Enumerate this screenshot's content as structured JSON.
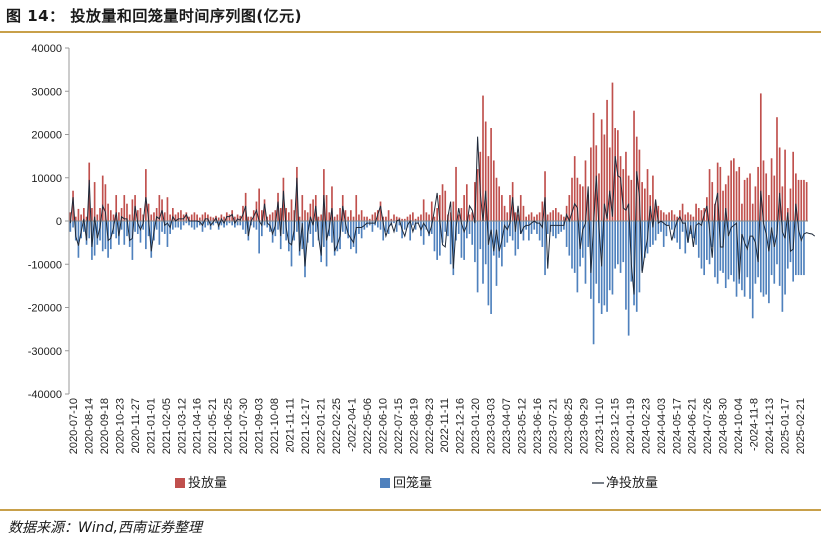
{
  "figure": {
    "title": "图 14：  投放量和回笼量时间序列图(亿元)",
    "source": "数据来源：Wind,西南证券整理"
  },
  "colors": {
    "inject": "#c0504d",
    "withdraw": "#4f81bd",
    "net": "#1f2a3a",
    "rule": "#c8a04a"
  },
  "chart_data": {
    "type": "bar",
    "title": "",
    "xlabel": "",
    "ylabel": "",
    "ylim": [
      -40000,
      40000
    ],
    "yticks": [
      40000,
      30000,
      20000,
      10000,
      0,
      -10000,
      -20000,
      -30000,
      -40000
    ],
    "x_tick_labels": [
      "2020-07-10",
      "2020-08-14",
      "2020-09-18",
      "2020-10-23",
      "2020-11-27",
      "2021-01-01",
      "2021-02-05",
      "2021-03-12",
      "2021-04-16",
      "2021-05-21",
      "2021-06-25",
      "2021-07-30",
      "2021-09-03",
      "2021-10-08",
      "2021-11-11",
      "2021-12-17",
      "2022-01-21",
      "2022-02-25",
      "-2022-04-1",
      "2022-05-06",
      "2022-06-10",
      "2022-07-15",
      "2022-08-19",
      "2022-09-23",
      "2022-11-11",
      "2022-12-16",
      "2023-01-20",
      "2023-03-03",
      "2023-04-07",
      "2023-05-12",
      "2023-06-16",
      "2023-07-21",
      "2023-08-25",
      "2023-09-29",
      "2023-11-10",
      "2023-12-15",
      "2024-01-19",
      "2024-02-23",
      "2024-04-03",
      "2024-05-17",
      "2024-06-21",
      "2024-07-26",
      "2024-08-30",
      "2024-10-04",
      "-2024-11-8",
      "2024-12-13",
      "2025-01-17",
      "2025-02-21"
    ],
    "legend_position": "bottom",
    "series": [
      {
        "name": "投放量",
        "type": "bar",
        "color": "#c0504d",
        "values": [
          2000,
          7000,
          1000,
          2800,
          1500,
          3000,
          1000,
          13500,
          3000,
          9000,
          1500,
          3000,
          10500,
          8500,
          4000,
          2500,
          1500,
          6000,
          2000,
          3000,
          6000,
          4000,
          1500,
          5000,
          6000,
          2500,
          3000,
          1500,
          12000,
          4000,
          1500,
          2000,
          3000,
          6000,
          5000,
          2000,
          5500,
          1500,
          3000,
          1500,
          2000,
          2500,
          1500,
          2000,
          1000,
          1500,
          2000,
          1500,
          800,
          1500,
          2000,
          1500,
          1000,
          800,
          1200,
          800,
          1500,
          1000,
          2000,
          1500,
          2500,
          1000,
          1500,
          1200,
          3500,
          6500,
          1000,
          1000,
          2500,
          4500,
          7500,
          2500,
          5000,
          1000,
          1500,
          2000,
          2500,
          6500,
          3000,
          10000,
          3000,
          2000,
          5000,
          2500,
          12500,
          1000,
          6000,
          2500,
          2000,
          4000,
          5000,
          6000,
          1000,
          1500,
          12000,
          6000,
          2000,
          8000,
          1000,
          1500,
          3000,
          6000,
          2500,
          1000,
          2500,
          1000,
          6000,
          1500,
          2500,
          1000,
          1000,
          500,
          1500,
          2000,
          2500,
          4500,
          1000,
          1000,
          2500,
          500,
          1500,
          1000,
          800,
          500,
          500,
          1000,
          1500,
          2000,
          500,
          1000,
          1500,
          5000,
          2000,
          1500,
          4500,
          1000,
          3000,
          6000,
          8500,
          7000,
          1500,
          2000,
          4500,
          12500,
          1500,
          3000,
          6000,
          8500,
          1500,
          2000,
          9000,
          12000,
          16000,
          29000,
          23000,
          15000,
          21500,
          14000,
          10000,
          8000,
          6000,
          3500,
          2000,
          6000,
          9000,
          2000,
          1500,
          6000,
          3500,
          1000,
          1500,
          2000,
          1000,
          1500,
          2000,
          4500,
          11500,
          1500,
          2000,
          2500,
          3000,
          2000,
          1500,
          1000,
          3500,
          6000,
          10000,
          15000,
          10000,
          8500,
          8000,
          14000,
          6000,
          17000,
          25000,
          17500,
          11000,
          23500,
          20000,
          28000,
          17000,
          32000,
          21500,
          21000,
          15000,
          12000,
          16000,
          10500,
          9500,
          25500,
          19500,
          16500,
          9000,
          7500,
          12000,
          6000,
          10500,
          4000,
          3500,
          2500,
          2000,
          1500,
          2000,
          2500,
          1500,
          1000,
          2500,
          4000,
          1500,
          2000,
          1500,
          1000,
          4000,
          3000,
          2500,
          3000,
          5500,
          12000,
          9000,
          4000,
          13500,
          12500,
          7000,
          8500,
          10500,
          14000,
          14500,
          11500,
          12500,
          4000,
          9500,
          10000,
          11000,
          4000,
          8000,
          12500,
          29500,
          14000,
          11000,
          6000,
          14500,
          10500,
          24000,
          17000,
          8000,
          16500,
          3000,
          7500,
          16000,
          11000,
          9500,
          9500,
          9500,
          9000
        ]
      },
      {
        "name": "回笼量",
        "type": "bar",
        "color": "#4f81bd",
        "values": [
          -2500,
          -1500,
          -4500,
          -8500,
          -4000,
          -2500,
          -5500,
          -4000,
          -9000,
          -8000,
          -5500,
          -4500,
          -7000,
          -6500,
          -8500,
          -6500,
          -3000,
          -4000,
          -5500,
          -2000,
          -5500,
          -3500,
          -6000,
          -9000,
          -2500,
          -3000,
          -5000,
          -2000,
          -6500,
          -3500,
          -8500,
          -4500,
          -2000,
          -5500,
          -2500,
          -3000,
          -6000,
          -3000,
          -2000,
          -1500,
          -1500,
          -2000,
          -1000,
          -500,
          -1000,
          -1500,
          -2000,
          -1500,
          -1000,
          -2500,
          -1500,
          -1000,
          -2000,
          -1000,
          -500,
          -2000,
          -1000,
          -1500,
          -1000,
          -500,
          -1000,
          -1500,
          -1000,
          -1000,
          -2000,
          -3000,
          -4500,
          -1000,
          -1500,
          -2000,
          -7500,
          -3500,
          -1000,
          -1500,
          -2500,
          -5000,
          -3500,
          -2000,
          -6500,
          -3000,
          -4500,
          -7000,
          -10500,
          -4500,
          -2500,
          -8000,
          -6500,
          -13000,
          -5000,
          -3000,
          -6000,
          -2500,
          -4500,
          -9500,
          -6000,
          -10500,
          -3500,
          -5000,
          -8000,
          -7000,
          -6500,
          -2500,
          -3000,
          -4000,
          -6500,
          -6000,
          -7500,
          -3000,
          -4000,
          -2000,
          -1500,
          -1000,
          -2500,
          -1000,
          -1500,
          -2000,
          -4500,
          -2500,
          -3000,
          -1000,
          -500,
          -2500,
          -1000,
          -4000,
          -2000,
          -1500,
          -4500,
          -1000,
          -2000,
          -500,
          -3500,
          -5500,
          -2000,
          -3500,
          -3000,
          -7000,
          -9000,
          -8000,
          -5000,
          -2500,
          -3500,
          -10000,
          -12500,
          -4500,
          -3000,
          -8500,
          -9000,
          -4000,
          -3000,
          -5500,
          -9500,
          -16500,
          -6500,
          -14500,
          -10000,
          -19500,
          -21500,
          -8000,
          -15000,
          -8500,
          -10500,
          -6000,
          -5000,
          -3500,
          -4500,
          -8000,
          -6500,
          -3000,
          -4500,
          -2000,
          -4500,
          -3000,
          -2000,
          -3000,
          -4500,
          -6000,
          -12500,
          -3000,
          -2500,
          -3500,
          -4000,
          -3000,
          -2500,
          -2000,
          -6000,
          -8000,
          -11000,
          -12000,
          -16500,
          -10500,
          -8500,
          -14500,
          -6000,
          -18000,
          -28500,
          -14500,
          -19000,
          -21500,
          -19500,
          -21000,
          -16000,
          -17000,
          -11000,
          -10000,
          -12000,
          -9500,
          -20500,
          -26500,
          -14000,
          -19500,
          -21000,
          -16500,
          -11500,
          -8500,
          -7500,
          -6000,
          -5500,
          -4500,
          -3000,
          -2500,
          -6000,
          -3500,
          -1000,
          -2000,
          -4000,
          -5000,
          -6500,
          -2500,
          -7500,
          -5000,
          -3000,
          -4000,
          -5500,
          -8500,
          -11000,
          -12500,
          -9000,
          -10000,
          -6000,
          -13000,
          -14500,
          -11500,
          -12000,
          -15500,
          -13500,
          -12500,
          -14000,
          -17500,
          -14500,
          -16000,
          -17500,
          -13000,
          -18000,
          -22500,
          -14500,
          -13000,
          -16500,
          -17500,
          -17000,
          -19000,
          -12500,
          -14500,
          -10000,
          -15000,
          -21000,
          -17000,
          -11000,
          -9500,
          -14000,
          -12500,
          -12500,
          -12500,
          -12500
        ]
      },
      {
        "name": "净投放量",
        "type": "line",
        "color": "#1f2a3a",
        "values": [
          -500,
          5500,
          -3500,
          -5700,
          -2500,
          500,
          -4500,
          9500,
          -6000,
          1000,
          -4000,
          -1500,
          3500,
          2000,
          -4500,
          -4000,
          -1500,
          2000,
          -3500,
          1000,
          500,
          500,
          -4500,
          -4000,
          3500,
          -500,
          -2000,
          -500,
          5500,
          500,
          -7000,
          -2500,
          1000,
          500,
          2500,
          -1000,
          -500,
          -1500,
          1000,
          0,
          500,
          500,
          500,
          1500,
          0,
          0,
          0,
          0,
          -200,
          -1000,
          500,
          500,
          -1000,
          -200,
          700,
          -1200,
          500,
          -500,
          1000,
          1000,
          1500,
          -500,
          500,
          200,
          1500,
          3500,
          -3500,
          0,
          1000,
          2500,
          0,
          -1000,
          4000,
          -500,
          -1000,
          -3000,
          -1000,
          4500,
          -3500,
          7000,
          -1500,
          -5000,
          -5500,
          -2000,
          10000,
          -7000,
          -500,
          -10500,
          -3000,
          1000,
          -1000,
          3500,
          -3500,
          -8000,
          6000,
          -4500,
          -1500,
          3000,
          -7000,
          -5500,
          -3500,
          3500,
          -500,
          -3000,
          -4000,
          -5000,
          -1500,
          -1500,
          -1500,
          -1000,
          -500,
          -500,
          -500,
          -500,
          1500,
          3500,
          -500,
          -3500,
          -1500,
          -500,
          -2500,
          0,
          300,
          -2000,
          -3500,
          -1000,
          0,
          -2500,
          -500,
          -500,
          -2000,
          -500,
          -1500,
          -3000,
          -1000,
          2500,
          6500,
          0,
          -5500,
          -6000,
          1000,
          4500,
          -11000,
          -1500,
          3000,
          -500,
          -2500,
          -1000,
          3500,
          2500,
          -500,
          19500,
          6500,
          0,
          7000,
          -5500,
          -2000,
          -7000,
          -2000,
          -7000,
          -4500,
          -1000,
          -2000,
          -500,
          5500,
          -2500,
          3500,
          -3000,
          -1500,
          -1000,
          -1000,
          -500,
          0,
          -500,
          -500,
          -1500,
          5500,
          -11000,
          -1000,
          -1000,
          -1000,
          -1000,
          -1000,
          -1000,
          1500,
          0,
          2000,
          4000,
          3000,
          -6500,
          -2000,
          -500,
          8000,
          -12000,
          -1000,
          10500,
          -1500,
          -10500,
          4000,
          500,
          7000,
          1000,
          15000,
          10500,
          10000,
          3000,
          2500,
          4000,
          -10000,
          -17000,
          11500,
          5500,
          -12000,
          -7500,
          -4000,
          3500,
          -1500,
          5000,
          -500,
          0,
          -500,
          -1000,
          -1000,
          -4500,
          -2000,
          0,
          1000,
          -500,
          -500,
          -5000,
          -1000,
          -6000,
          -1000,
          -500,
          -1000,
          1500,
          3500,
          -2000,
          -8500,
          3500,
          6500,
          -6000,
          -6000,
          3000,
          -3500,
          -1500,
          -1000,
          -500,
          -13500,
          -3000,
          -5000,
          -6500,
          -3500,
          -3500,
          -5000,
          -9500,
          7000,
          -500,
          -3000,
          -7000,
          -1500,
          -6000,
          -3000,
          6500,
          -2500,
          -4000,
          2000,
          -7000,
          -6500,
          4000,
          -2000,
          -4500,
          -3000,
          -2700,
          -2900,
          -3000,
          -3500
        ]
      }
    ]
  }
}
